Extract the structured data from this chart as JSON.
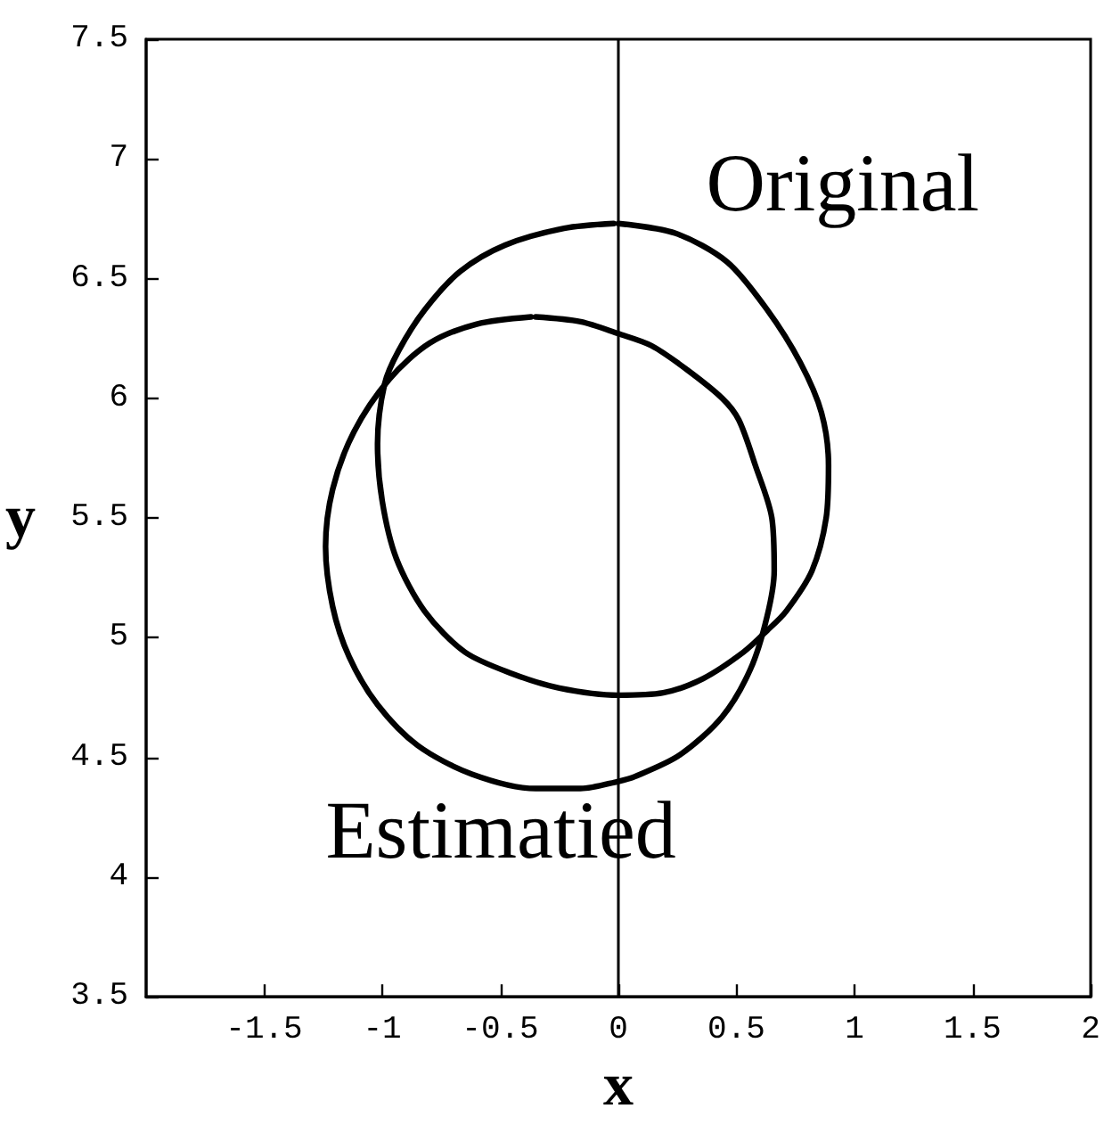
{
  "chart_data": {
    "type": "line",
    "xlabel": "x",
    "ylabel": "y",
    "xlim": [
      -2,
      2
    ],
    "ylim": [
      3.5,
      7.5
    ],
    "xticks": [
      -1.5,
      -1,
      -0.5,
      0,
      0.5,
      1,
      1.5,
      2
    ],
    "yticks": [
      3.5,
      4,
      4.5,
      5,
      5.5,
      6,
      6.5,
      7,
      7.5
    ],
    "marker": "none",
    "ref_lines": [
      {
        "axis": "x",
        "value": 0,
        "color": "#000000"
      }
    ],
    "series": [
      {
        "name": "Original",
        "color": "#000000",
        "x": [
          0.0,
          0.24,
          0.46,
          0.63,
          0.77,
          0.86,
          0.89,
          0.88,
          0.82,
          0.71,
          0.63,
          0.53,
          0.36,
          0.19,
          0.0,
          -0.25,
          -0.45,
          -0.65,
          -0.82,
          -0.94,
          -1.0,
          -1.02,
          -0.99,
          -0.93,
          -0.82,
          -0.67,
          -0.48,
          -0.23,
          -0.02
        ],
        "values": [
          6.73,
          6.69,
          6.57,
          6.37,
          6.15,
          5.94,
          5.72,
          5.5,
          5.28,
          5.11,
          5.03,
          4.94,
          4.83,
          4.77,
          4.76,
          4.79,
          4.85,
          4.94,
          5.11,
          5.33,
          5.57,
          5.81,
          6.06,
          6.2,
          6.37,
          6.53,
          6.64,
          6.71,
          6.73
        ]
      },
      {
        "name": "Estimatied",
        "color": "#000000",
        "x": [
          -0.35,
          -0.16,
          0.0,
          0.14,
          0.29,
          0.44,
          0.51,
          0.58,
          0.65,
          0.66,
          0.63,
          0.56,
          0.44,
          0.26,
          0.07,
          0.0,
          -0.16,
          -0.35,
          -0.62,
          -0.85,
          -1.02,
          -1.14,
          -1.21,
          -1.24,
          -1.21,
          -1.12,
          -0.97,
          -0.8,
          -0.6,
          -0.37
        ],
        "values": [
          6.34,
          6.32,
          6.27,
          6.22,
          6.12,
          6.0,
          5.91,
          5.72,
          5.5,
          5.28,
          5.09,
          4.87,
          4.67,
          4.51,
          4.42,
          4.4,
          4.37,
          4.37,
          4.43,
          4.55,
          4.72,
          4.92,
          5.13,
          5.38,
          5.62,
          5.86,
          6.08,
          6.23,
          6.31,
          6.34
        ]
      }
    ]
  }
}
